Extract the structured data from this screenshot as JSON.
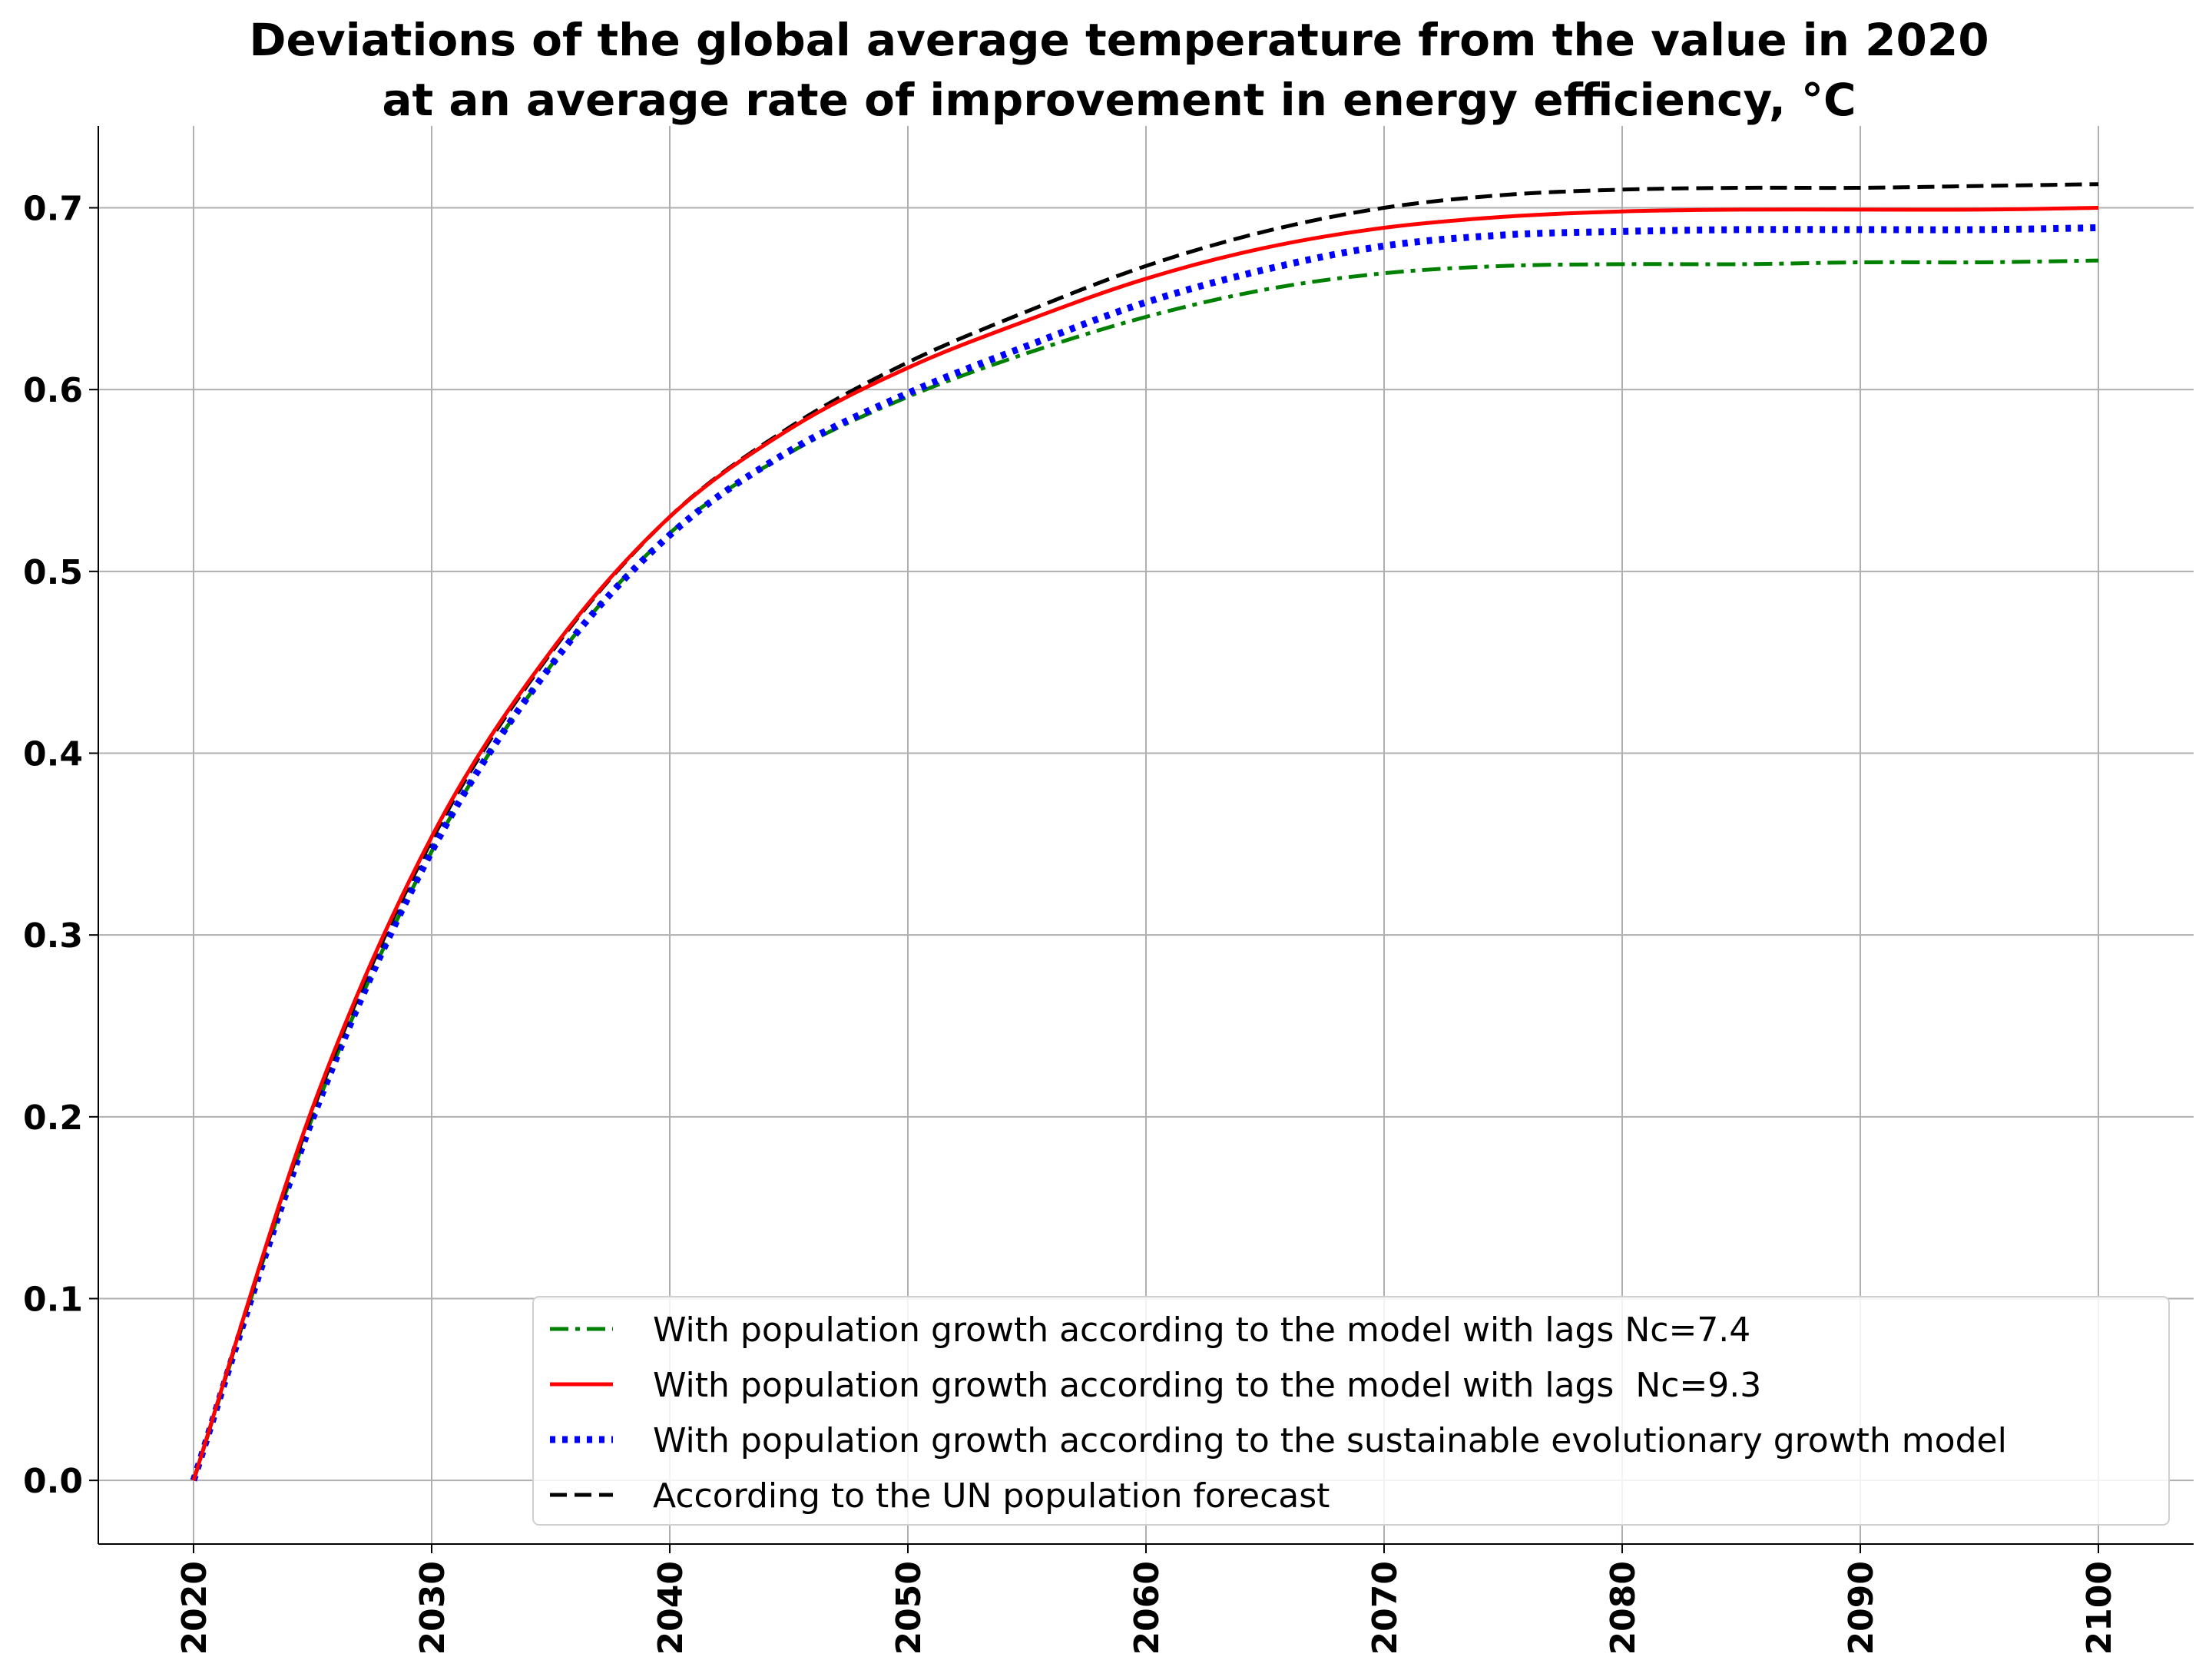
{
  "chart_data": {
    "type": "line",
    "title": [
      "Deviations of the global average temperature from the value in 2020",
      "at an average rate of improvement in energy efficiency, °C"
    ],
    "xlabel": "",
    "ylabel": "",
    "xlim": [
      2016,
      2104
    ],
    "ylim": [
      -0.035,
      0.745
    ],
    "xticks": [
      2020,
      2030,
      2040,
      2050,
      2060,
      2070,
      2080,
      2090,
      2100
    ],
    "xtick_labels": [
      "2020",
      "2030",
      "2040",
      "2050",
      "2060",
      "2070",
      "2080",
      "2090",
      "2100"
    ],
    "yticks": [
      0.0,
      0.1,
      0.2,
      0.3,
      0.4,
      0.5,
      0.6,
      0.7
    ],
    "ytick_labels": [
      "0.0",
      "0.1",
      "0.2",
      "0.3",
      "0.4",
      "0.5",
      "0.6",
      "0.7"
    ],
    "grid": true,
    "legend_position": "lower-right",
    "x": [
      2020,
      2025,
      2030,
      2035,
      2040,
      2045,
      2050,
      2055,
      2060,
      2065,
      2070,
      2075,
      2080,
      2085,
      2090,
      2095,
      2100
    ],
    "series": [
      {
        "name": "With population growth according to the model with lags Nc=7.4",
        "color": "#008000",
        "dash": "dashdot",
        "values": [
          0.0,
          0.2,
          0.346,
          0.448,
          0.521,
          0.565,
          0.596,
          0.62,
          0.64,
          0.655,
          0.664,
          0.668,
          0.669,
          0.669,
          0.67,
          0.67,
          0.671
        ]
      },
      {
        "name": "With population growth according to the model with lags  Nc=9.3",
        "color": "#ff0000",
        "dash": "solid",
        "values": [
          0.0,
          0.205,
          0.354,
          0.456,
          0.53,
          0.578,
          0.612,
          0.638,
          0.661,
          0.678,
          0.689,
          0.695,
          0.698,
          0.699,
          0.699,
          0.699,
          0.7
        ]
      },
      {
        "name": "With population growth according to the sustainable evolutionary growth model",
        "color": "#0000ff",
        "dash": "dotted",
        "values": [
          0.0,
          0.199,
          0.346,
          0.448,
          0.52,
          0.566,
          0.598,
          0.624,
          0.648,
          0.666,
          0.679,
          0.685,
          0.687,
          0.688,
          0.688,
          0.688,
          0.689
        ]
      },
      {
        "name": "According to the UN population forecast",
        "color": "#000000",
        "dash": "dashed",
        "values": [
          0.0,
          0.203,
          0.352,
          0.455,
          0.53,
          0.579,
          0.615,
          0.643,
          0.668,
          0.687,
          0.7,
          0.707,
          0.71,
          0.711,
          0.711,
          0.712,
          0.713
        ]
      }
    ]
  }
}
